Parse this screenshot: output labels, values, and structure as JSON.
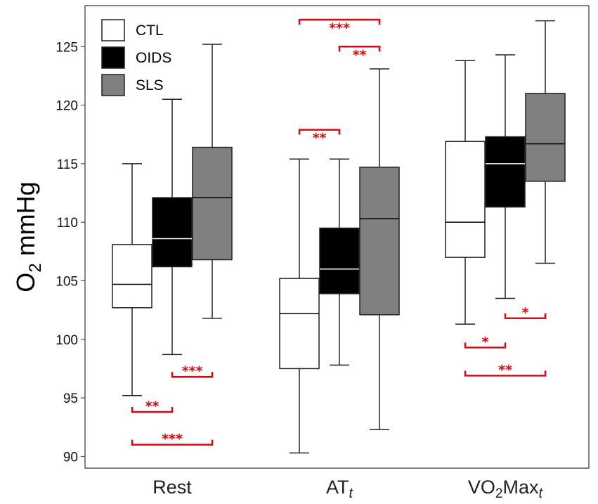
{
  "chart_data": {
    "type": "boxplot",
    "ylabel_base": "O",
    "ylabel_sub": "2",
    "ylabel_rest": " mmHg",
    "ylim": [
      89,
      128.5
    ],
    "yticks": [
      90,
      95,
      100,
      105,
      110,
      115,
      120,
      125
    ],
    "ytick_labels": [
      "90",
      "95",
      "100",
      "105",
      "110",
      "115",
      "120",
      "125"
    ],
    "categories": [
      {
        "base": "Rest",
        "sub": ""
      },
      {
        "base": "AT",
        "sub": "t"
      },
      {
        "base": "VO",
        "sub2": "2",
        "mid": "Max",
        "sub": "t"
      }
    ],
    "series": [
      {
        "name": "CTL",
        "color": "#ffffff",
        "median_color": "#000000",
        "boxes": [
          {
            "whislo": 95.2,
            "q1": 102.7,
            "med": 104.7,
            "q3": 108.1,
            "whishi": 115.0
          },
          {
            "whislo": 90.3,
            "q1": 97.5,
            "med": 102.2,
            "q3": 105.2,
            "whishi": 115.4
          },
          {
            "whislo": 101.3,
            "q1": 107.0,
            "med": 110.0,
            "q3": 116.9,
            "whishi": 123.8
          }
        ]
      },
      {
        "name": "OIDS",
        "color": "#000000",
        "median_color": "#ffffff",
        "boxes": [
          {
            "whislo": 98.7,
            "q1": 106.2,
            "med": 108.6,
            "q3": 112.1,
            "whishi": 120.5
          },
          {
            "whislo": 97.8,
            "q1": 103.9,
            "med": 106.0,
            "q3": 109.5,
            "whishi": 115.4
          },
          {
            "whislo": 103.5,
            "q1": 111.3,
            "med": 115.0,
            "q3": 117.3,
            "whishi": 124.3
          }
        ]
      },
      {
        "name": "SLS",
        "color": "#808080",
        "median_color": "#000000",
        "boxes": [
          {
            "whislo": 101.8,
            "q1": 106.8,
            "med": 112.1,
            "q3": 116.4,
            "whishi": 125.2
          },
          {
            "whislo": 92.3,
            "q1": 102.1,
            "med": 110.3,
            "q3": 114.7,
            "whishi": 123.1
          },
          {
            "whislo": 106.5,
            "q1": 113.5,
            "med": 116.7,
            "q3": 121.0,
            "whishi": 127.2
          }
        ]
      }
    ],
    "significance": [
      {
        "cat": 0,
        "from": 0,
        "to": 1,
        "y": 93.8,
        "label": "**",
        "dir": "up"
      },
      {
        "cat": 0,
        "from": 0,
        "to": 2,
        "y": 91.0,
        "label": "***",
        "dir": "up"
      },
      {
        "cat": 0,
        "from": 1,
        "to": 2,
        "y": 96.8,
        "label": "***",
        "dir": "up"
      },
      {
        "cat": 1,
        "from": 0,
        "to": 1,
        "y": 117.9,
        "label": "**",
        "dir": "down"
      },
      {
        "cat": 1,
        "from": 0,
        "to": 2,
        "y": 127.3,
        "label": "***",
        "dir": "down"
      },
      {
        "cat": 1,
        "from": 1,
        "to": 2,
        "y": 125.0,
        "label": "**",
        "dir": "down"
      },
      {
        "cat": 2,
        "from": 0,
        "to": 1,
        "y": 99.3,
        "label": "*",
        "dir": "up"
      },
      {
        "cat": 2,
        "from": 1,
        "to": 2,
        "y": 101.8,
        "label": "*",
        "dir": "up"
      },
      {
        "cat": 2,
        "from": 0,
        "to": 2,
        "y": 96.9,
        "label": "**",
        "dir": "up"
      }
    ],
    "legend": {
      "position": "top-left",
      "entries": [
        "CTL",
        "OIDS",
        "SLS"
      ]
    },
    "significance_color": "#e8000b"
  }
}
